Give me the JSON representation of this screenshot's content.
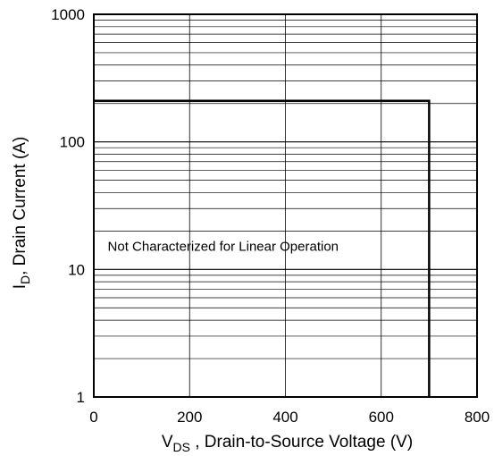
{
  "chart_data": {
    "type": "line",
    "xlabel": {
      "main": "V",
      "sub": "DS",
      "rest": " , Drain-to-Source Voltage (V)"
    },
    "ylabel": {
      "main": "I",
      "sub": "D",
      "rest": ", Drain Current (A)"
    },
    "xlim": [
      0,
      800
    ],
    "ylim": [
      1,
      1000
    ],
    "yscale": "log",
    "grid": true,
    "x_ticks": [
      0,
      200,
      400,
      600,
      800
    ],
    "x_tick_labels": [
      "0",
      "200",
      "400",
      "600",
      "800"
    ],
    "y_ticks": [
      1,
      10,
      100,
      1000
    ],
    "y_tick_labels": [
      "1",
      "10",
      "100",
      "1000"
    ],
    "series": [
      {
        "x": [
          0,
          700,
          700
        ],
        "y": [
          210,
          210,
          1
        ],
        "color": "#000000"
      }
    ],
    "annotations": [
      {
        "text": "Not Characterized for Linear Operation",
        "x": 270,
        "y": 14
      }
    ]
  }
}
